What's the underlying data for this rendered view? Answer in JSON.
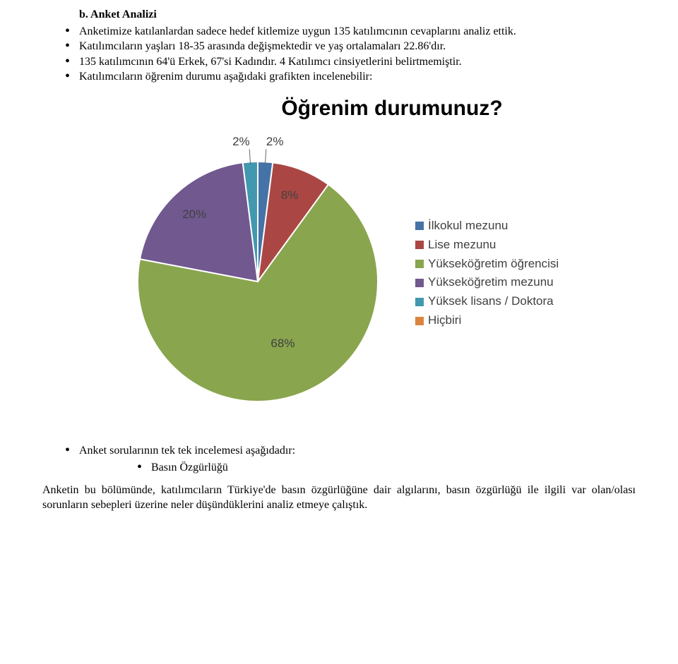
{
  "header": {
    "title": "b. Anket Analizi"
  },
  "intro_bullets": [
    "Anketimize katılanlardan sadece hedef kitlemize uygun 135 katılımcının cevaplarını analiz ettik.",
    "Katılımcıların yaşları 18-35 arasında değişmektedir ve yaş ortalamaları 22.86'dır.",
    "135 katılımcının 64'ü Erkek, 67'si Kadındır. 4 Katılımcı cinsiyetlerini belirtmemiştir.",
    "Katılımcıların öğrenim durumu aşağıdaki grafikten incelenebilir:"
  ],
  "chart": {
    "type": "pie",
    "title": "Öğrenim durumunuz?",
    "title_fontsize": 30,
    "label_fontsize": 17,
    "label_color": "#404040",
    "background_color": "#ffffff",
    "slices": [
      {
        "label": "İlkokul mezunu",
        "value": 2,
        "color": "#4573a7",
        "display_label": "2%"
      },
      {
        "label": "Lise mezunu",
        "value": 8,
        "color": "#aa4744",
        "display_label": "8%"
      },
      {
        "label": "Yükseköğretim öğrencisi",
        "value": 68,
        "color": "#89a54e",
        "display_label": "68%"
      },
      {
        "label": "Yükseköğretim mezunu",
        "value": 20,
        "color": "#71588f",
        "display_label": "20%"
      },
      {
        "label": "Yüksek lisans / Doktora",
        "value": 2,
        "color": "#4298af",
        "display_label": "2%"
      },
      {
        "label": "Hiçbiri",
        "value": 0,
        "color": "#db843e",
        "display_label": ""
      }
    ],
    "gap_color": "#ffffff",
    "gap_width": 2
  },
  "outro_bullets": {
    "top": "Anket sorularının tek tek incelemesi aşağıdadır:",
    "sub": "Basın Özgürlüğü"
  },
  "paragraph": "Anketin bu bölümünde, katılımcıların Türkiye'de basın özgürlüğüne dair algılarını, basın özgürlüğü ile ilgili var olan/olası sorunların sebepleri üzerine neler düşündüklerini analiz etmeye çalıştık."
}
